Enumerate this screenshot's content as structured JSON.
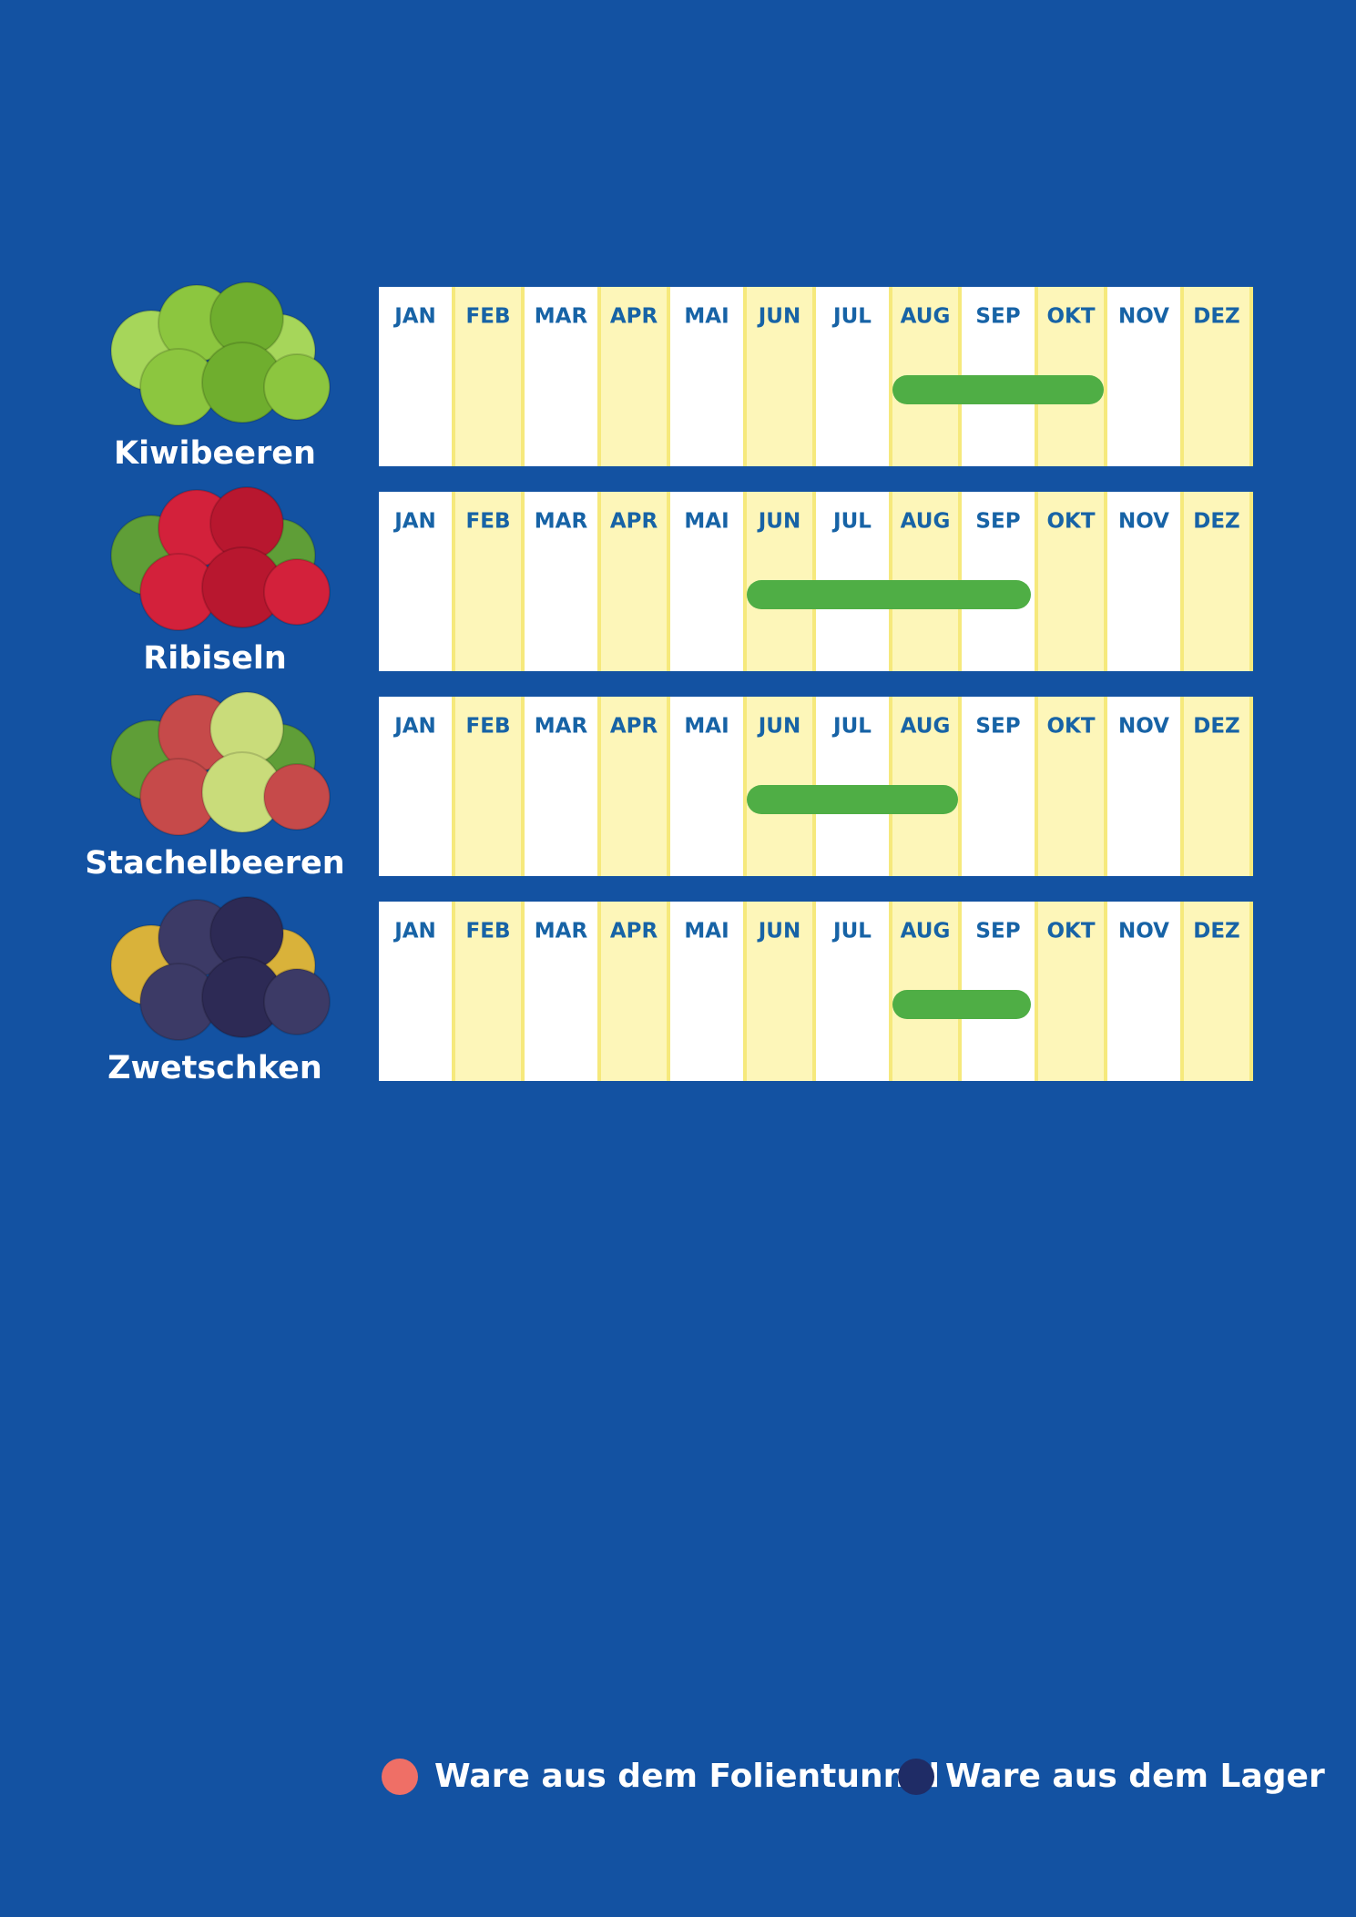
{
  "months": [
    "JAN",
    "FEB",
    "MAR",
    "APR",
    "MAI",
    "JUN",
    "JUL",
    "AUG",
    "SEP",
    "OKT",
    "NOV",
    "DEZ"
  ],
  "season_color": "#4fae45",
  "rows": [
    {
      "name": "Kiwibeeren",
      "start_month": 8,
      "end_month": 10
    },
    {
      "name": "Ribiseln",
      "start_month": 6,
      "end_month": 9
    },
    {
      "name": "Stachelbeeren",
      "start_month": 6,
      "end_month": 8
    },
    {
      "name": "Zwetschken",
      "start_month": 8,
      "end_month": 9
    }
  ],
  "legend": [
    {
      "label": "Ware aus dem Folientunnel",
      "color": "#ef6f66"
    },
    {
      "label": "Ware aus dem Lager",
      "color": "#1f2c66"
    }
  ]
}
